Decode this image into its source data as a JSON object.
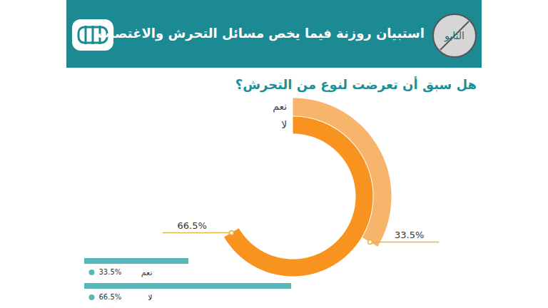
{
  "chart_data": [
    {
      "type": "radial_bar",
      "title": "استبيان روزنة فيما يخص مسائل التحرش والاغتصاب",
      "subtitle": "هل سبق أن تعرضت لنوع من التحرش؟",
      "annotations": [
        "التابو"
      ],
      "categories": [
        "نعم",
        "لا"
      ],
      "values": [
        33.5,
        66.5
      ],
      "value_labels": [
        "33.5%",
        "66.5%"
      ],
      "data_labels": true,
      "colors": [
        "#f7b46b",
        "#f7931e"
      ]
    },
    {
      "type": "bar",
      "orientation": "horizontal",
      "categories": [
        "نعم",
        "لا"
      ],
      "values": [
        33.5,
        66.5
      ],
      "value_labels": [
        "33.5%",
        "66.5%"
      ],
      "data_labels": true,
      "color": "#56b8b8",
      "xlim": [
        0,
        100
      ],
      "tick_labels": false
    }
  ]
}
